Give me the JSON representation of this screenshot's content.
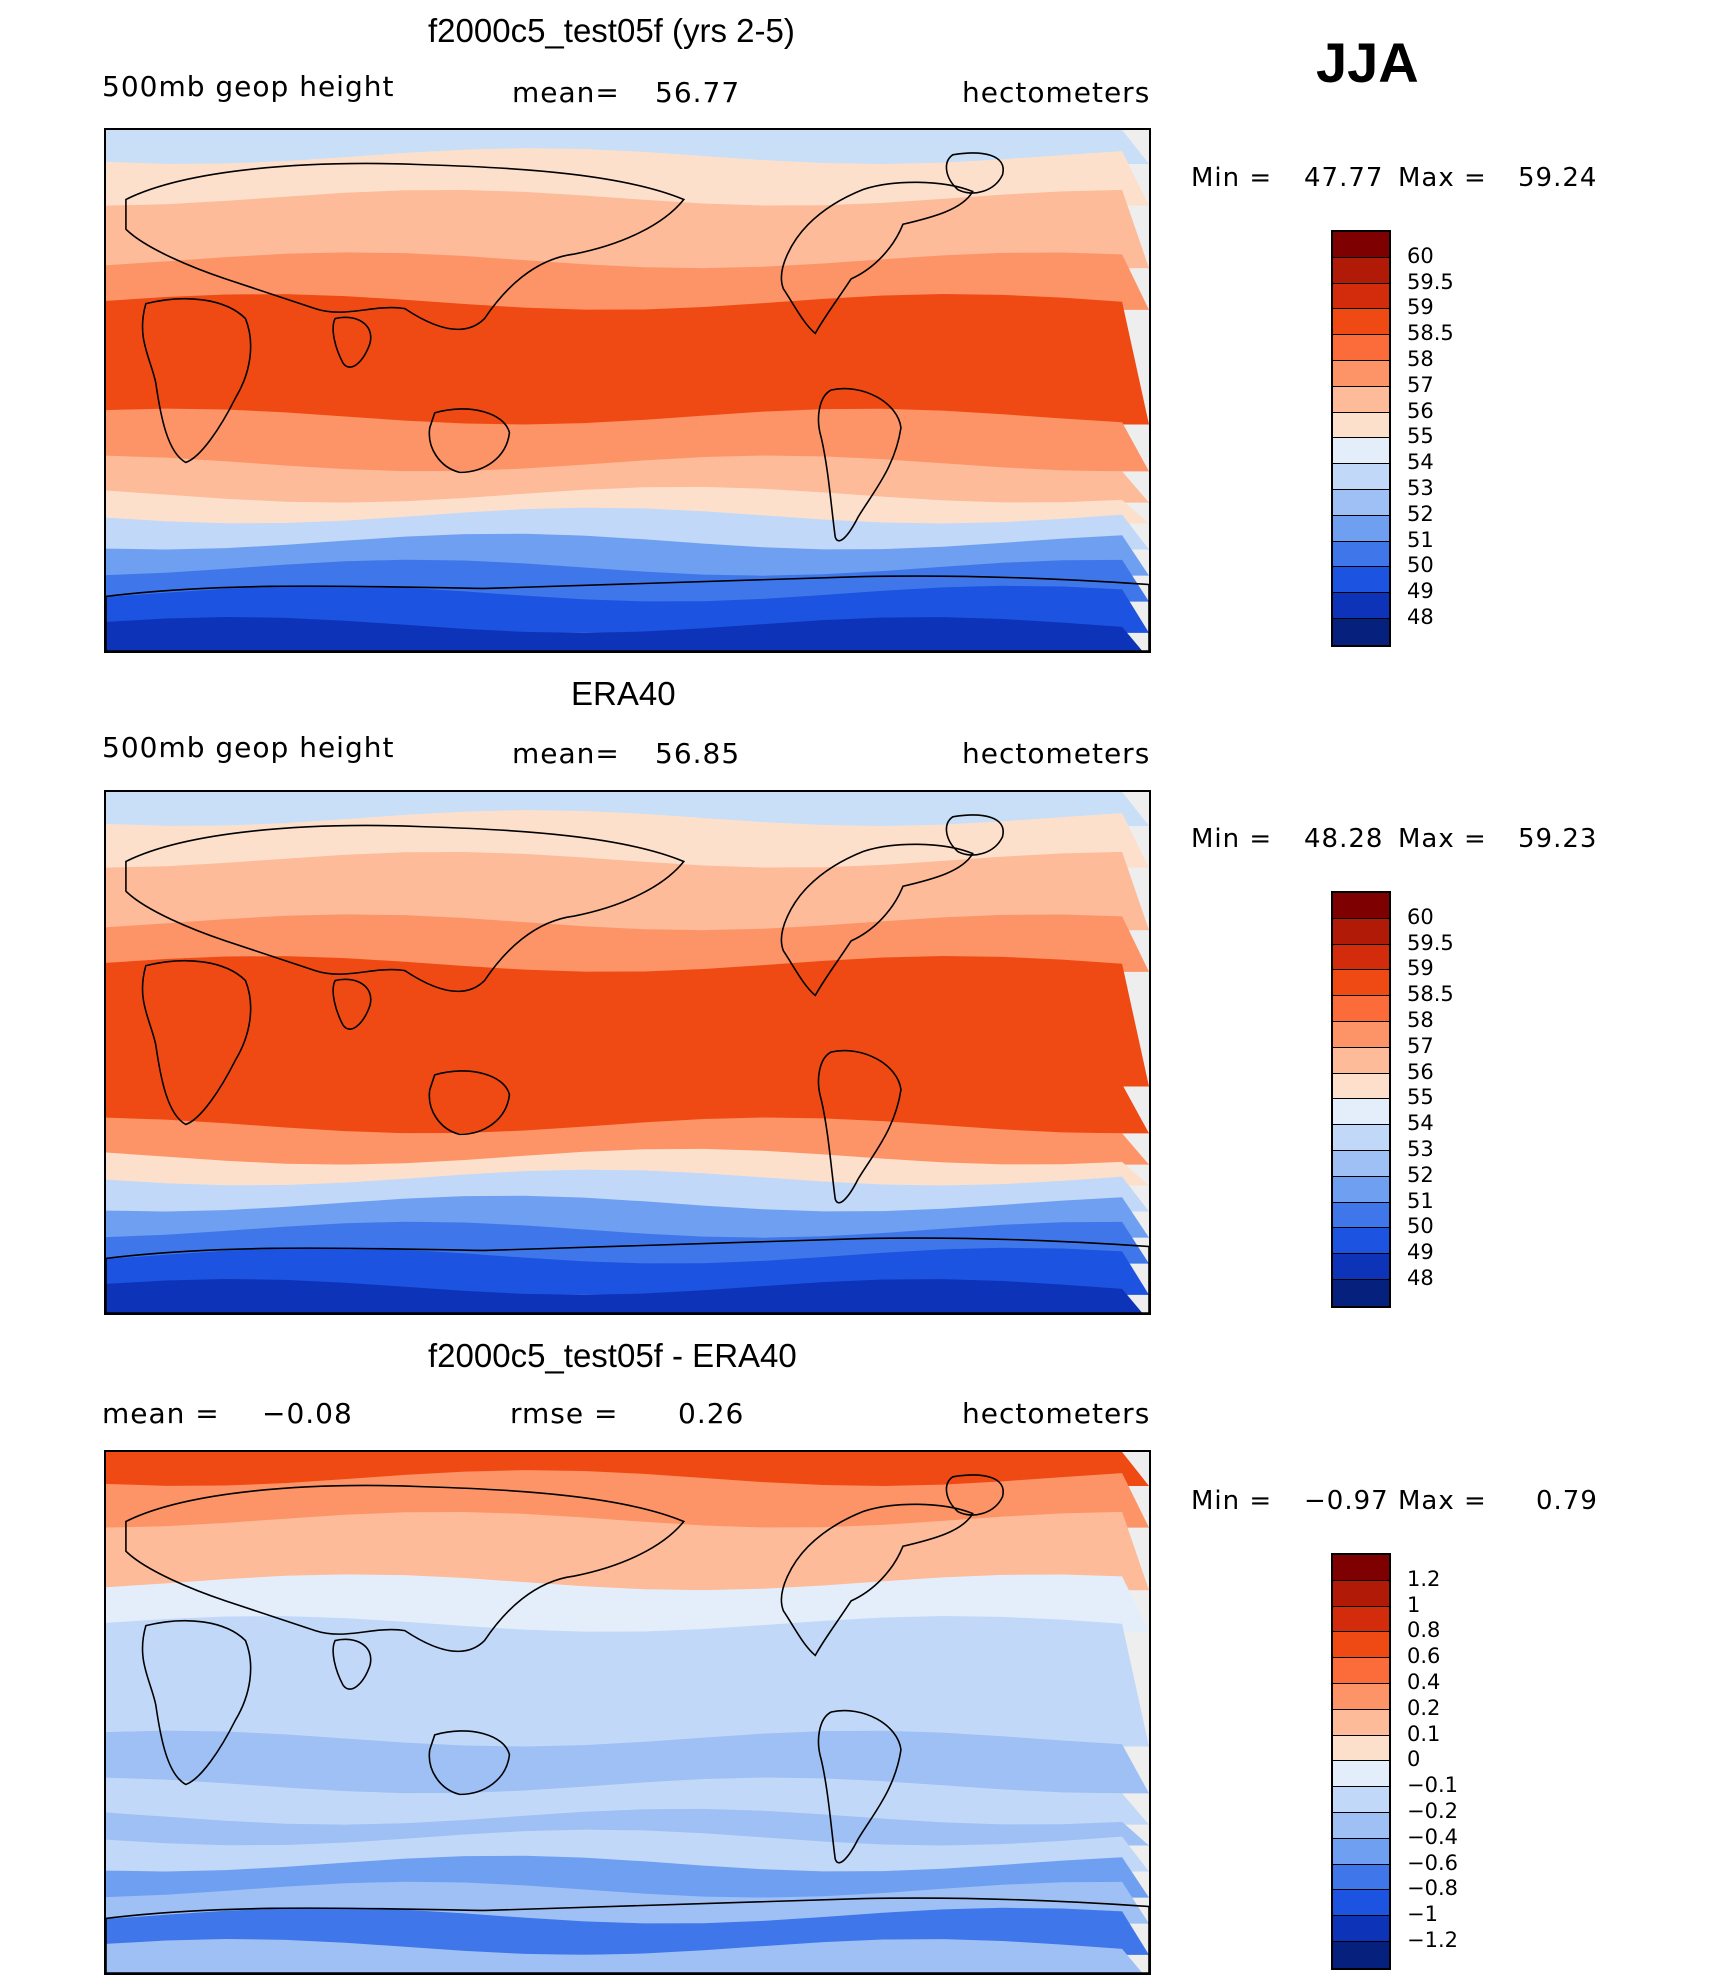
{
  "season": "JJA",
  "coastline_color": "#000000",
  "panels": [
    {
      "title": "f2000c5_test05f (yrs 2-5)",
      "left_label": "500mb geop height",
      "center_label": "mean=",
      "center_value": "56.77",
      "units": "hectometers",
      "min_label": "Min =",
      "min_value": "47.77",
      "max_label": "Max =",
      "max_value": "59.24",
      "colorbar": {
        "labels": [
          "60",
          "59.5",
          "59",
          "58.5",
          "58",
          "57",
          "56",
          "55",
          "54",
          "53",
          "52",
          "51",
          "50",
          "49",
          "48"
        ],
        "colors": [
          "#7f0000",
          "#b11a06",
          "#d22c0c",
          "#f04a14",
          "#fb6c3a",
          "#fc9468",
          "#fdbb99",
          "#fde0cc",
          "#e4eefb",
          "#c2d8f8",
          "#9ec0f4",
          "#6f9ff0",
          "#3f77ea",
          "#1c53e0",
          "#0d33b8",
          "#06207e"
        ]
      },
      "map_bands": [
        "#c8dff7",
        "#fde0cc",
        "#fdbb99",
        "#fc9468",
        "#f04a14",
        "#fc9468",
        "#fdbb99",
        "#fde0cc",
        "#c2d8f8",
        "#6f9ff0",
        "#3f77ea",
        "#1c53e0",
        "#0d33b8"
      ]
    },
    {
      "title": "ERA40",
      "left_label": "500mb geop height",
      "center_label": "mean=",
      "center_value": "56.85",
      "units": "hectometers",
      "min_label": "Min =",
      "min_value": "48.28",
      "max_label": "Max =",
      "max_value": "59.23",
      "colorbar": {
        "labels": [
          "60",
          "59.5",
          "59",
          "58.5",
          "58",
          "57",
          "56",
          "55",
          "54",
          "53",
          "52",
          "51",
          "50",
          "49",
          "48"
        ],
        "colors": [
          "#7f0000",
          "#b11a06",
          "#d22c0c",
          "#f04a14",
          "#fb6c3a",
          "#fc9468",
          "#fdbb99",
          "#fde0cc",
          "#e4eefb",
          "#c2d8f8",
          "#9ec0f4",
          "#6f9ff0",
          "#3f77ea",
          "#1c53e0",
          "#0d33b8",
          "#06207e"
        ]
      },
      "map_bands": [
        "#c8dff7",
        "#fde0cc",
        "#fdbb99",
        "#fc9468",
        "#f04a14",
        "#f04a14",
        "#fc9468",
        "#fde0cc",
        "#c2d8f8",
        "#6f9ff0",
        "#3f77ea",
        "#1c53e0",
        "#0d33b8"
      ]
    },
    {
      "title": "f2000c5_test05f - ERA40",
      "left_label": "mean =",
      "left_value": "−0.08",
      "center_label": "rmse =",
      "center_value": "0.26",
      "units": "hectometers",
      "min_label": "Min =",
      "min_value": "−0.97",
      "max_label": "Max =",
      "max_value": "0.79",
      "colorbar": {
        "labels": [
          "1.2",
          "1",
          "0.8",
          "0.6",
          "0.4",
          "0.2",
          "0.1",
          "0",
          "−0.1",
          "−0.2",
          "−0.4",
          "−0.6",
          "−0.8",
          "−1",
          "−1.2"
        ],
        "colors": [
          "#7f0000",
          "#b11a06",
          "#d22c0c",
          "#f04a14",
          "#fb6c3a",
          "#fc9468",
          "#fdbb99",
          "#fde0cc",
          "#e4eefb",
          "#c2d8f8",
          "#9ec0f4",
          "#6f9ff0",
          "#3f77ea",
          "#1c53e0",
          "#0d33b8",
          "#06207e"
        ]
      },
      "map_bands": [
        "#f04a14",
        "#fc9468",
        "#fdbb99",
        "#e4eefb",
        "#c2d8f8",
        "#9ec0f4",
        "#c2d8f8",
        "#9ec0f4",
        "#c2d8f8",
        "#6f9ff0",
        "#9ec0f4",
        "#3f77ea",
        "#9ec0f4"
      ]
    }
  ]
}
